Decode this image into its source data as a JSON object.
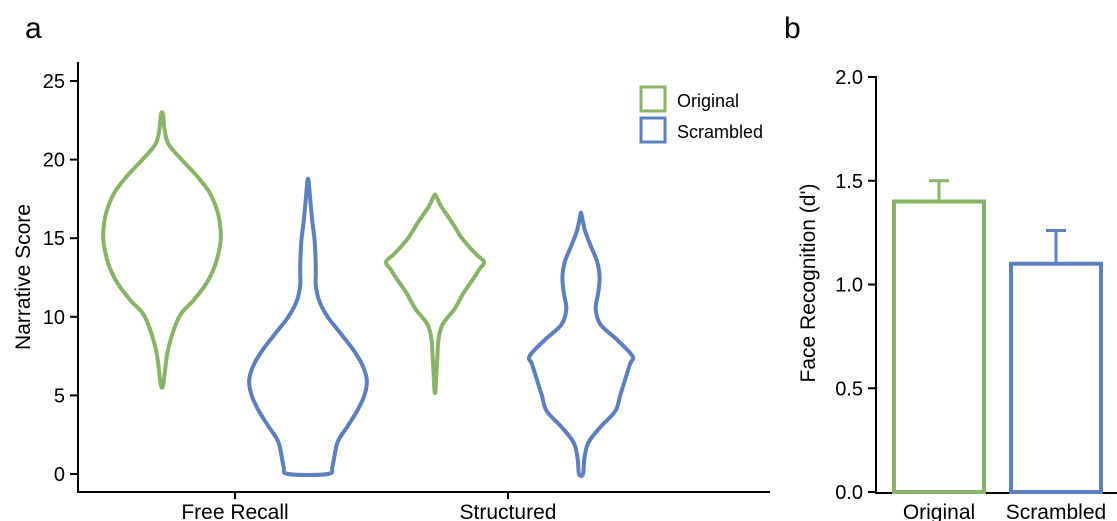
{
  "panels": {
    "a_label": "a",
    "b_label": "b"
  },
  "colors": {
    "original": "#88B466",
    "scrambled": "#5B7FC0"
  },
  "chart_data": [
    {
      "type": "violin",
      "panel": "a",
      "title": "",
      "ylabel": "Narrative Score",
      "xlabel": "",
      "ylim": [
        0,
        25
      ],
      "yticks": [
        0,
        5,
        10,
        15,
        20,
        25
      ],
      "categories": [
        "Free Recall",
        "Structured"
      ],
      "legend": {
        "placement": "top-right",
        "entries": [
          "Original",
          "Scrambled"
        ]
      },
      "series": [
        {
          "name": "Original",
          "violins": [
            {
              "category": "Free Recall",
              "profile": [
                [
                  5.6,
                  0.2
                ],
                [
                  6.5,
                  0.6
                ],
                [
                  8,
                  1.3
                ],
                [
                  10,
                  3.5
                ],
                [
                  11,
                  6.3
                ],
                [
                  12,
                  8.8
                ],
                [
                  13,
                  10.5
                ],
                [
                  14,
                  11.5
                ],
                [
                  15,
                  12
                ],
                [
                  16,
                  11.8
                ],
                [
                  17,
                  11
                ],
                [
                  18,
                  9.5
                ],
                [
                  19,
                  7
                ],
                [
                  20,
                  4
                ],
                [
                  21,
                  1.3
                ],
                [
                  22,
                  0.5
                ],
                [
                  22.9,
                  0.2
                ]
              ]
            },
            {
              "category": "Structured",
              "profile": [
                [
                  5.3,
                  0.1
                ],
                [
                  6.5,
                  0.3
                ],
                [
                  7.5,
                  0.5
                ],
                [
                  8.5,
                  0.7
                ],
                [
                  9.5,
                  1.5
                ],
                [
                  10.5,
                  4
                ],
                [
                  11.5,
                  5.8
                ],
                [
                  12.5,
                  8
                ],
                [
                  13,
                  9
                ],
                [
                  13.5,
                  10
                ],
                [
                  14,
                  8.3
                ],
                [
                  15,
                  5.5
                ],
                [
                  16,
                  3.5
                ],
                [
                  17,
                  1.3
                ],
                [
                  17.7,
                  0.2
                ]
              ]
            }
          ]
        },
        {
          "name": "Scrambled",
          "violins": [
            {
              "category": "Free Recall",
              "profile": [
                [
                  0,
                  4
                ],
                [
                  0.5,
                  5
                ],
                [
                  2,
                  6
                ],
                [
                  3,
                  8
                ],
                [
                  4,
                  10
                ],
                [
                  5,
                  11.5
                ],
                [
                  6,
                  12
                ],
                [
                  7,
                  11
                ],
                [
                  8,
                  9
                ],
                [
                  9,
                  6.5
                ],
                [
                  10,
                  4
                ],
                [
                  11,
                  2.3
                ],
                [
                  12,
                  1.6
                ],
                [
                  13,
                  1.6
                ],
                [
                  14,
                  1.5
                ],
                [
                  15,
                  1.3
                ],
                [
                  16,
                  0.9
                ],
                [
                  17,
                  0.6
                ],
                [
                  18,
                  0.3
                ],
                [
                  18.7,
                  0.1
                ]
              ]
            },
            {
              "category": "Structured",
              "profile": [
                [
                  0,
                  0.4
                ],
                [
                  1,
                  0.7
                ],
                [
                  2,
                  1.5
                ],
                [
                  3,
                  4
                ],
                [
                  4,
                  7
                ],
                [
                  5,
                  8
                ],
                [
                  6,
                  9
                ],
                [
                  7,
                  10
                ],
                [
                  7.5,
                  10.5
                ],
                [
                  8.5,
                  7.5
                ],
                [
                  9.5,
                  4
                ],
                [
                  10.5,
                  3
                ],
                [
                  11.5,
                  3.5
                ],
                [
                  12.5,
                  3.8
                ],
                [
                  13.5,
                  3.3
                ],
                [
                  14.5,
                  2
                ],
                [
                  15.5,
                  0.8
                ],
                [
                  16.5,
                  0.1
                ]
              ]
            }
          ]
        }
      ]
    },
    {
      "type": "bar",
      "panel": "b",
      "title": "",
      "ylabel": "Face Recognition (d')",
      "xlabel": "",
      "ylim": [
        0,
        2.0
      ],
      "yticks": [
        "0.0",
        "0.5",
        "1.0",
        "1.5",
        "2.0"
      ],
      "categories": [
        "Original",
        "Scrambled"
      ],
      "values": [
        1.4,
        1.1
      ],
      "error": [
        0.1,
        0.16
      ]
    }
  ]
}
